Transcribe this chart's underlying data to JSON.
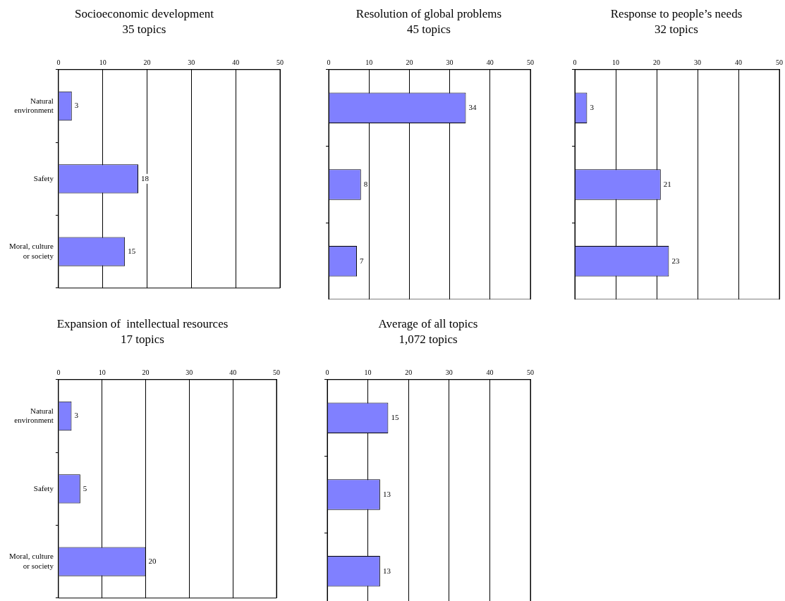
{
  "chart_data": [
    {
      "type": "bar",
      "orientation": "horizontal",
      "title": "Socioeconomic development",
      "subtitle": "35 topics",
      "categories": [
        "Natural environment",
        "Safety",
        "Moral, culture or society"
      ],
      "values": [
        3,
        18,
        15
      ],
      "color": "#8080ff",
      "xlim": [
        0,
        50
      ],
      "xticks": [
        0,
        10,
        20,
        30,
        40,
        50
      ],
      "grid": "x",
      "data_labels": true
    },
    {
      "type": "bar",
      "orientation": "horizontal",
      "title": "Resolution of global problems",
      "subtitle": "45 topics",
      "categories": [
        null,
        null,
        null
      ],
      "values": [
        34,
        8,
        7
      ],
      "color": "#8080ff",
      "xlim": [
        0,
        50
      ],
      "xticks": [
        0,
        10,
        20,
        30,
        40,
        50
      ],
      "grid": "x",
      "data_labels": true,
      "tick_labels": "x"
    },
    {
      "type": "bar",
      "orientation": "horizontal",
      "title": "Response to people’s needs",
      "subtitle": "32 topics",
      "categories": [
        null,
        null,
        null
      ],
      "values": [
        3,
        21,
        23
      ],
      "color": "#8080ff",
      "xlim": [
        0,
        50
      ],
      "xticks": [
        0,
        10,
        20,
        30,
        40,
        50
      ],
      "grid": "x",
      "data_labels": true,
      "tick_labels": "x"
    },
    {
      "type": "bar",
      "orientation": "horizontal",
      "title": "Expansion of  intellectual resources",
      "subtitle": "17 topics",
      "categories": [
        "Natural environment",
        "Safety",
        "Moral, culture or society"
      ],
      "values": [
        3,
        5,
        20
      ],
      "color": "#8080ff",
      "xlim": [
        0,
        50
      ],
      "xticks": [
        0,
        10,
        20,
        30,
        40,
        50
      ],
      "grid": "x",
      "data_labels": true
    },
    {
      "type": "bar",
      "orientation": "horizontal",
      "title": "Average of all topics",
      "subtitle": "1,072 topics",
      "categories": [
        null,
        null,
        null
      ],
      "values": [
        15,
        13,
        13
      ],
      "color": "#8080ff",
      "xlim": [
        0,
        50
      ],
      "xticks": [
        0,
        10,
        20,
        30,
        40,
        50
      ],
      "grid": "x",
      "data_labels": true,
      "tick_labels": "x"
    }
  ]
}
